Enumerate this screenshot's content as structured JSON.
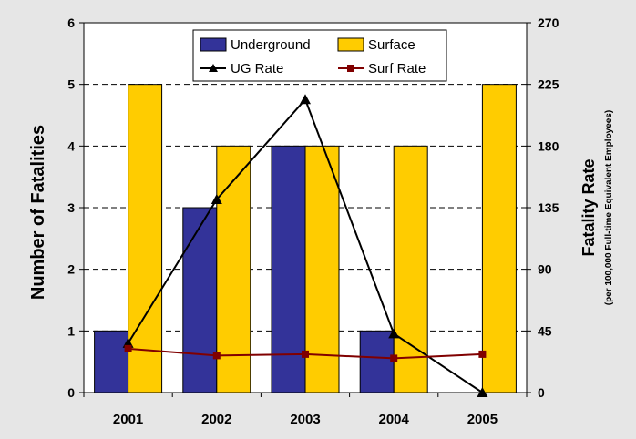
{
  "chart_data": {
    "type": "bar",
    "categories": [
      "2001",
      "2002",
      "2003",
      "2004",
      "2005"
    ],
    "series": [
      {
        "name": "Underground",
        "kind": "bar",
        "axis": "left",
        "color": "#333399",
        "values": [
          1,
          3,
          4,
          1,
          0
        ]
      },
      {
        "name": "Surface",
        "kind": "bar",
        "axis": "left",
        "color": "#ffcc00",
        "values": [
          5,
          4,
          4,
          4,
          5
        ]
      },
      {
        "name": "UG Rate",
        "kind": "line",
        "axis": "right",
        "color": "#000000",
        "marker": "triangle",
        "values": [
          36,
          141,
          214,
          43,
          0
        ]
      },
      {
        "name": "Surf Rate",
        "kind": "line",
        "axis": "right",
        "color": "#800000",
        "marker": "square",
        "values": [
          32,
          27,
          28,
          25,
          28
        ]
      }
    ],
    "ylabel": "Number of Fatalities",
    "y2label": "Fatality Rate",
    "y2sublabel": "(per 100,000 Full-time Equivalent Employees)",
    "ylim": [
      0,
      6
    ],
    "yticks": [
      0,
      1,
      2,
      3,
      4,
      5,
      6
    ],
    "y2lim": [
      0,
      270
    ],
    "y2ticks": [
      0,
      45,
      90,
      135,
      180,
      225,
      270
    ],
    "grid": "horizontal-dashed",
    "legend": "top-center",
    "colors": {
      "background": "#e6e6e6",
      "plot_area": "#ffffff"
    }
  }
}
